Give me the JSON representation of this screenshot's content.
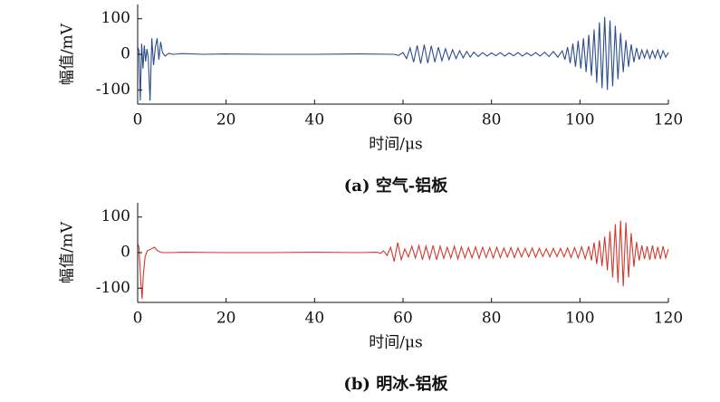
{
  "chart_data": [
    {
      "type": "line",
      "caption": "(a) 空气-铝板",
      "xlabel": "时间/μs",
      "ylabel": "幅值/mV",
      "color": "#2b4d8c",
      "xlim": [
        0,
        120
      ],
      "xticks": [
        0,
        20,
        40,
        60,
        80,
        100,
        120
      ],
      "ylim": [
        -140,
        140
      ],
      "yticks": [
        -100,
        0,
        100
      ],
      "x": [
        0,
        0.3,
        0.6,
        0.9,
        1.2,
        1.5,
        1.8,
        2.1,
        2.4,
        2.8,
        3.2,
        3.6,
        4.0,
        4.4,
        4.8,
        5.2,
        5.6,
        6.2,
        7,
        8,
        10,
        15,
        20,
        30,
        40,
        50,
        58,
        59,
        60,
        60.8,
        61.6,
        62.4,
        63.2,
        64,
        64.8,
        65.6,
        66.4,
        67.2,
        68,
        68.8,
        69.6,
        70.4,
        71.2,
        72,
        72.8,
        73.6,
        74.4,
        75.2,
        76,
        77,
        78,
        79,
        80,
        81,
        82,
        83,
        84,
        85,
        86,
        87,
        88,
        89,
        90,
        91,
        92,
        93,
        94,
        95,
        96,
        96.6,
        97.2,
        97.8,
        98.4,
        99,
        99.6,
        100.2,
        100.8,
        101.4,
        102,
        102.6,
        103.2,
        103.8,
        104.4,
        105,
        105.6,
        106.2,
        106.8,
        107.4,
        108,
        108.6,
        109.2,
        109.8,
        110.4,
        111,
        111.6,
        112.2,
        112.8,
        113.4,
        114,
        114.6,
        115.2,
        115.8,
        116.4,
        117,
        117.6,
        118.2,
        118.8,
        119.4,
        120
      ],
      "values": [
        20,
        10,
        -130,
        30,
        -40,
        25,
        -20,
        15,
        -10,
        -130,
        45,
        -30,
        20,
        45,
        -15,
        35,
        5,
        -5,
        3,
        0,
        2,
        0,
        1,
        0,
        0,
        1,
        0,
        -3,
        5,
        -12,
        18,
        -22,
        25,
        -26,
        27,
        -25,
        24,
        -22,
        20,
        -18,
        16,
        -15,
        13,
        -12,
        10,
        -10,
        8,
        -8,
        6,
        -6,
        5,
        -5,
        4,
        -4,
        5,
        -5,
        4,
        -4,
        5,
        -5,
        4,
        -4,
        5,
        -5,
        6,
        -6,
        8,
        -8,
        10,
        -15,
        20,
        -25,
        30,
        -35,
        38,
        -40,
        45,
        -50,
        55,
        -60,
        70,
        -80,
        90,
        -95,
        105,
        -100,
        95,
        -90,
        80,
        -70,
        60,
        -50,
        40,
        -35,
        28,
        -22,
        18,
        -15,
        12,
        -10,
        12,
        -12,
        10,
        -10,
        12,
        -12,
        10,
        -8,
        5
      ]
    },
    {
      "type": "line",
      "caption": "(b) 明冰-铝板",
      "xlabel": "时间/μs",
      "ylabel": "幅值/mV",
      "color": "#d03a2e",
      "xlim": [
        0,
        120
      ],
      "xticks": [
        0,
        20,
        40,
        60,
        80,
        100,
        120
      ],
      "ylim": [
        -140,
        140
      ],
      "yticks": [
        -100,
        0,
        100
      ],
      "x": [
        0,
        0.3,
        0.7,
        1,
        1.3,
        1.7,
        2.2,
        3,
        3.8,
        4.5,
        5.5,
        8,
        10,
        20,
        30,
        40,
        50,
        54,
        55,
        55.6,
        56.4,
        57.2,
        58,
        58.8,
        59.6,
        60.4,
        61.2,
        62,
        62.8,
        63.6,
        64.4,
        65.2,
        66,
        66.8,
        67.6,
        68.4,
        69.2,
        70,
        70.8,
        71.6,
        72.4,
        73.2,
        74,
        74.8,
        75.6,
        76.4,
        77.2,
        78,
        78.8,
        79.6,
        80.4,
        81.2,
        82,
        82.8,
        83.6,
        84.4,
        85.2,
        86,
        86.8,
        87.6,
        88.4,
        89.2,
        90,
        90.8,
        91.6,
        92.4,
        93.2,
        94,
        94.8,
        95.6,
        96.4,
        97.2,
        98,
        98.8,
        99.6,
        100.4,
        101.2,
        102,
        102.6,
        103.2,
        103.8,
        104.4,
        105,
        105.6,
        106.2,
        106.8,
        107.4,
        108,
        108.6,
        109.2,
        109.8,
        110.4,
        111,
        111.6,
        112.2,
        112.8,
        113.4,
        114,
        114.6,
        115.2,
        115.8,
        116.4,
        117,
        117.6,
        118.2,
        118.8,
        119.4,
        120
      ],
      "values": [
        25,
        15,
        -80,
        -130,
        -60,
        -10,
        5,
        10,
        15,
        5,
        0,
        0,
        1,
        0,
        0,
        1,
        0,
        1,
        -2,
        5,
        -8,
        15,
        -25,
        28,
        -20,
        10,
        -12,
        18,
        -15,
        20,
        -20,
        18,
        -18,
        20,
        -20,
        18,
        -16,
        15,
        -15,
        18,
        -18,
        16,
        -15,
        14,
        -15,
        16,
        -16,
        15,
        -14,
        14,
        -15,
        15,
        -14,
        13,
        -13,
        14,
        -14,
        13,
        -12,
        12,
        -12,
        13,
        -13,
        12,
        -11,
        11,
        -12,
        12,
        -11,
        12,
        -12,
        13,
        -14,
        14,
        -15,
        16,
        -17,
        18,
        -22,
        28,
        -32,
        35,
        -38,
        45,
        -50,
        60,
        -70,
        80,
        -85,
        90,
        -95,
        85,
        -70,
        55,
        -40,
        30,
        -22,
        20,
        -18,
        18,
        -20,
        20,
        -18,
        16,
        -18,
        18,
        -15,
        10
      ]
    }
  ]
}
